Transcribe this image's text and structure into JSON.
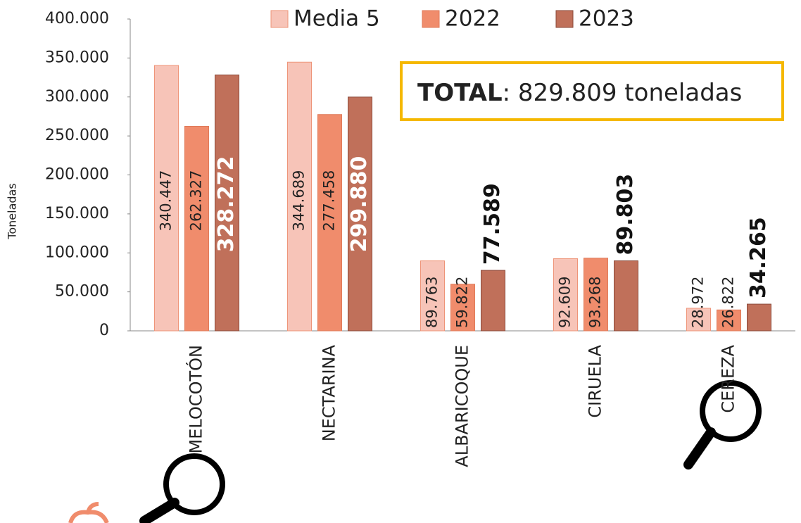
{
  "chart_data": {
    "type": "bar",
    "y_axis_label": "Toneladas",
    "annotation": {
      "bold": "TOTAL",
      "text": ": 829.809 toneladas"
    },
    "categories": [
      "MELOCOTÓN",
      "NECTARINA",
      "ALBARICOQUE",
      "CIRUELA",
      "CEREZA"
    ],
    "series": [
      {
        "name": "Media 5",
        "color": "#f7c4b8",
        "values": [
          340447,
          344689,
          89763,
          92609,
          28972
        ],
        "value_labels": [
          "340.447",
          "344.689",
          "89.763",
          "92.609",
          "28.972"
        ]
      },
      {
        "name": "2022",
        "color": "#f08c6c",
        "values": [
          262327,
          277458,
          59822,
          93268,
          26822
        ],
        "value_labels": [
          "262.327",
          "277.458",
          "59.822",
          "93.268",
          "26.822"
        ]
      },
      {
        "name": "2023",
        "color": "#c0705a",
        "values": [
          328272,
          299880,
          77589,
          89803,
          34265
        ],
        "value_labels": [
          "328.272",
          "299.880",
          "77.589",
          "89.803",
          "34.265"
        ]
      }
    ],
    "ylim": [
      0,
      400000
    ],
    "yticks": [
      0,
      {
        "value": 50000,
        "label": "50.000"
      },
      {
        "value": 100000,
        "label": "100.000"
      },
      {
        "value": 150000,
        "label": "150.000"
      },
      {
        "value": 200000,
        "label": "200.000"
      },
      {
        "value": 250000,
        "label": "250.000"
      },
      {
        "value": 300000,
        "label": "300.000"
      },
      {
        "value": 350000,
        "label": "350.000"
      },
      {
        "value": 400000,
        "label": "400.000"
      }
    ]
  }
}
